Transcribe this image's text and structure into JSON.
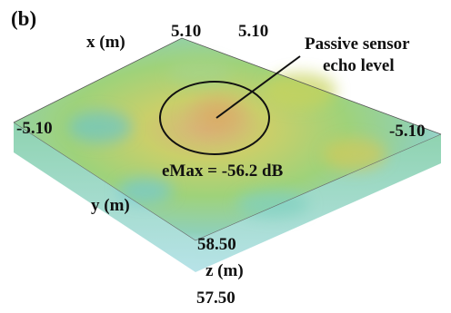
{
  "panel_label": "(b)",
  "axes": {
    "x": {
      "label": "x (m)",
      "ticks": [
        "5.10",
        "5.10"
      ]
    },
    "y": {
      "label": "y (m)",
      "ticks": [
        "-5.10",
        "-5.10"
      ]
    },
    "z": {
      "label": "z (m)",
      "ticks": [
        "58.50",
        "57.50"
      ]
    }
  },
  "annotation": {
    "lines": [
      "Passive sensor",
      "echo level"
    ],
    "measure": "eMax = -56.2 dB"
  }
}
